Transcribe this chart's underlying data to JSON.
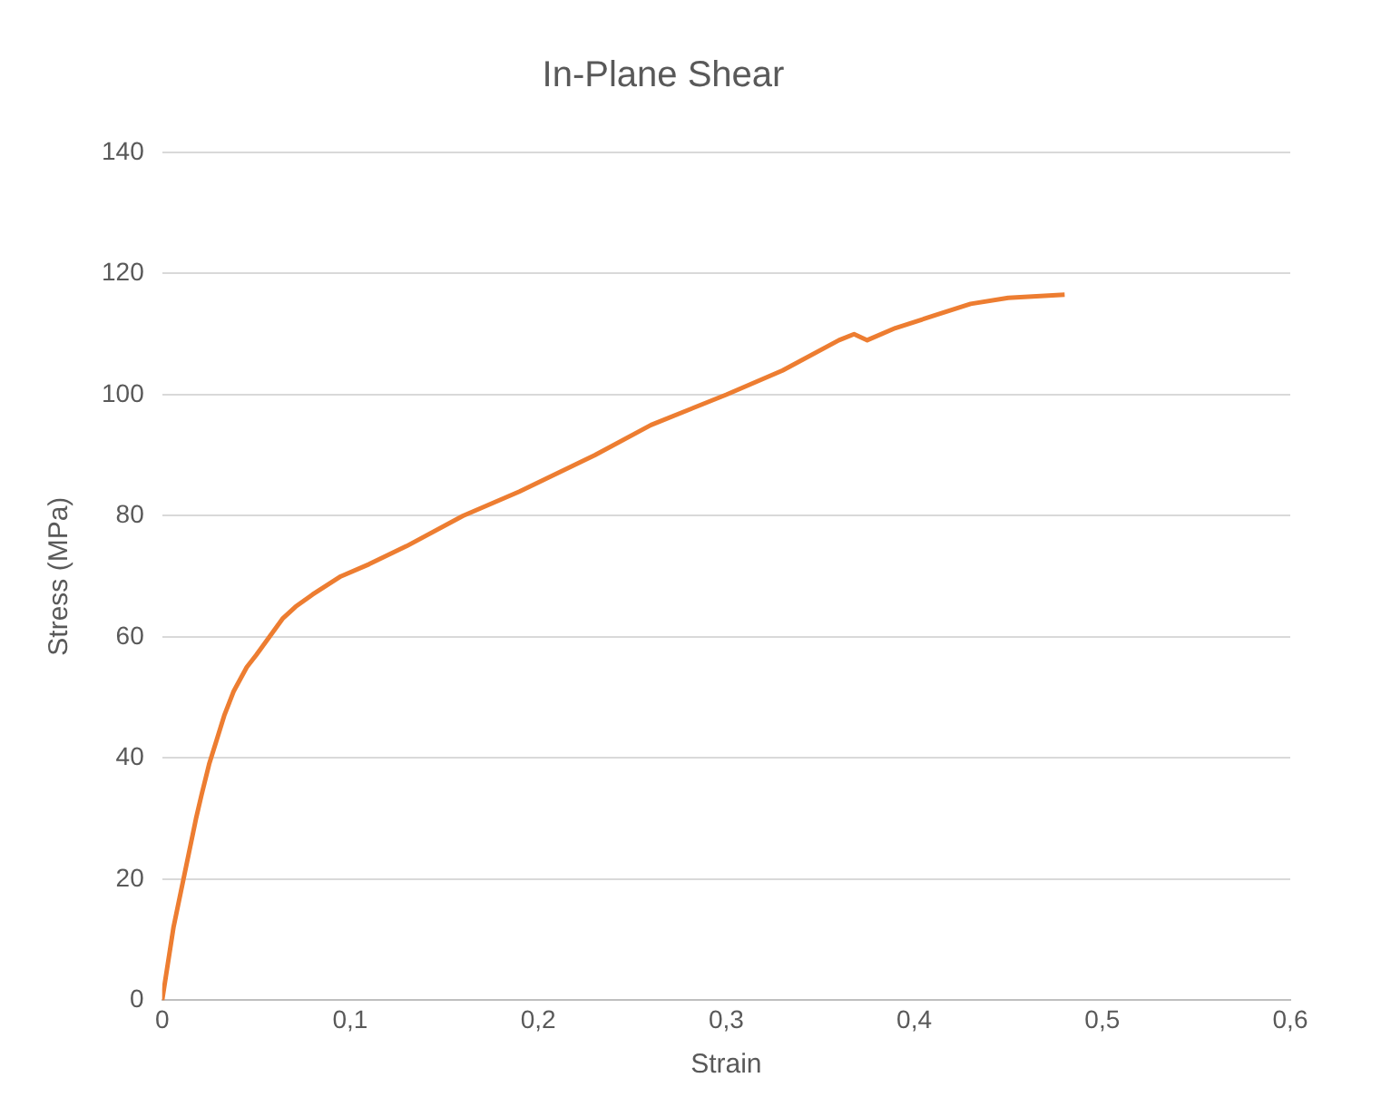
{
  "chart_data": {
    "type": "line",
    "title": "In-Plane Shear",
    "xlabel": "Strain",
    "ylabel": "Stress (MPa)",
    "series": [
      {
        "color": "#ed7d31",
        "x": [
          0,
          0.003,
          0.006,
          0.01,
          0.014,
          0.018,
          0.021,
          0.025,
          0.029,
          0.033,
          0.038,
          0.045,
          0.05,
          0.057,
          0.064,
          0.071,
          0.08,
          0.095,
          0.11,
          0.13,
          0.16,
          0.19,
          0.23,
          0.26,
          0.3,
          0.33,
          0.36,
          0.368,
          0.375,
          0.39,
          0.41,
          0.43,
          0.45,
          0.48
        ],
        "values": [
          0,
          6,
          12,
          18,
          24,
          30,
          34,
          39,
          43,
          47,
          51,
          55,
          57,
          60,
          63,
          65,
          67,
          70,
          72,
          75,
          80,
          84,
          90,
          95,
          100,
          104,
          109,
          110,
          109,
          111,
          113,
          115,
          116,
          116.5
        ]
      }
    ],
    "xlim": [
      0,
      0.6
    ],
    "ylim": [
      0,
      140
    ],
    "xticks": [
      {
        "value": 0,
        "label": "0"
      },
      {
        "value": 0.1,
        "label": "0,1"
      },
      {
        "value": 0.2,
        "label": "0,2"
      },
      {
        "value": 0.3,
        "label": "0,3"
      },
      {
        "value": 0.4,
        "label": "0,4"
      },
      {
        "value": 0.5,
        "label": "0,5"
      },
      {
        "value": 0.6,
        "label": "0,6"
      }
    ],
    "yticks": [
      0,
      20,
      40,
      60,
      80,
      100,
      120,
      140
    ],
    "grid": "y",
    "legend": false,
    "marker": "none",
    "line_style": "solid"
  }
}
